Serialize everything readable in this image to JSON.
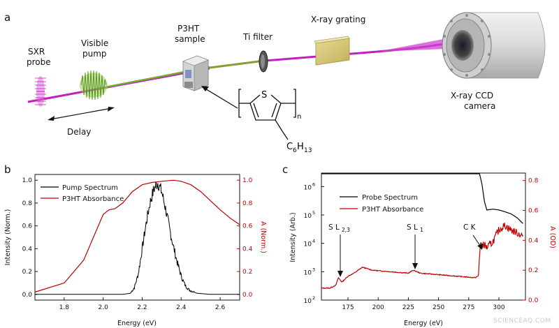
{
  "panel_a": {
    "panel_label": "a",
    "labels": {
      "sxr": [
        "SXR",
        "probe"
      ],
      "pump": [
        "Visible",
        "pump"
      ],
      "sample": [
        "P3HT",
        "sample"
      ],
      "filter": "Ti filter",
      "grating": "X-ray grating",
      "camera": [
        "X-ray CCD",
        "camera"
      ],
      "delay": "Delay"
    },
    "molecule": {
      "atom": "S",
      "subscript_n": "n",
      "side_chain": "C",
      "side_chain_sub1": "6",
      "side_chain_mid": "H",
      "side_chain_sub2": "13"
    },
    "colors": {
      "sxr": "#c020c0",
      "pump": "#6fae2a",
      "beam_mixed": "#9a8a30",
      "grating": "#d6c87a"
    }
  },
  "panel_b": {
    "panel_label": "b",
    "xlabel": "Energy (eV)",
    "ylabel_left": "Intensity (Norm.)",
    "ylabel_right": "A (Norm.)",
    "xticks": [
      "1.8",
      "2.0",
      "2.2",
      "2.4",
      "2.6"
    ],
    "yticks_left": [
      "0.0",
      "0.2",
      "0.4",
      "0.6",
      "0.8",
      "1.0"
    ],
    "yticks_right": [
      "0.0",
      "0.2",
      "0.4",
      "0.6",
      "0.8",
      "1.0"
    ],
    "legend": [
      "Pump Spectrum",
      "P3HT Absorbance"
    ]
  },
  "panel_c": {
    "panel_label": "c",
    "xlabel": "Energy (eV)",
    "ylabel_left": "Intensity (Arb.)",
    "ylabel_right": "A (OD)",
    "xticks": [
      "200",
      "250",
      "300"
    ],
    "xticks_mid": [
      "175",
      "225",
      "275"
    ],
    "yticks_left": [
      "10",
      "10",
      "10",
      "10",
      "10"
    ],
    "yticks_left_exp": [
      "2",
      "3",
      "4",
      "5",
      "6"
    ],
    "yticks_right": [
      "0.0",
      "0.2",
      "0.4",
      "0.6",
      "0.8"
    ],
    "legend": [
      "Probe Spectrum",
      "P3HT Absorbance"
    ],
    "annotations": {
      "s_l23": "S L",
      "s_l23_sub": "2,3",
      "s_l1": "S L",
      "s_l1_sub": "1",
      "ck": "C K"
    }
  },
  "watermark": "SCIENCEAQ.COM",
  "chart_data": [
    {
      "type": "line",
      "xlabel": "Energy (eV)",
      "ylabel": "Intensity (Norm.)",
      "y2label": "A (Norm.)",
      "xlim": [
        1.65,
        2.7
      ],
      "ylim": [
        -0.05,
        1.05
      ],
      "y2lim": [
        -0.05,
        1.05
      ],
      "legend_position": "top-left",
      "series": [
        {
          "name": "Pump Spectrum",
          "color": "#000000",
          "axis": "left",
          "x": [
            1.65,
            2.0,
            2.1,
            2.14,
            2.16,
            2.18,
            2.2,
            2.22,
            2.24,
            2.26,
            2.28,
            2.3,
            2.32,
            2.34,
            2.36,
            2.38,
            2.4,
            2.42,
            2.44,
            2.48,
            2.55,
            2.7
          ],
          "y": [
            0.0,
            0.0,
            0.0,
            0.01,
            0.06,
            0.18,
            0.4,
            0.62,
            0.8,
            0.92,
            0.98,
            0.9,
            0.75,
            0.58,
            0.42,
            0.28,
            0.16,
            0.08,
            0.04,
            0.01,
            0.0,
            0.0
          ]
        },
        {
          "name": "P3HT Absorbance",
          "color": "#c00000",
          "axis": "right",
          "x": [
            1.65,
            1.8,
            1.9,
            1.95,
            2.0,
            2.03,
            2.06,
            2.1,
            2.15,
            2.2,
            2.25,
            2.3,
            2.36,
            2.4,
            2.45,
            2.5,
            2.55,
            2.6,
            2.65,
            2.7
          ],
          "y": [
            0.02,
            0.1,
            0.3,
            0.5,
            0.7,
            0.74,
            0.75,
            0.8,
            0.9,
            0.96,
            0.98,
            0.99,
            1.0,
            0.99,
            0.96,
            0.9,
            0.82,
            0.74,
            0.67,
            0.61
          ]
        }
      ]
    },
    {
      "type": "line",
      "xlabel": "Energy (eV)",
      "ylabel": "Intensity (Arb.)",
      "y2label": "A (OD)",
      "xlim": [
        153,
        322
      ],
      "ylim": [
        100,
        3000000
      ],
      "y_scale": "log",
      "y2lim": [
        0.0,
        0.85
      ],
      "legend_position": "top-left",
      "series": [
        {
          "name": "Probe Spectrum",
          "color": "#000000",
          "axis": "left",
          "x": [
            153,
            160,
            170,
            180,
            200,
            220,
            240,
            260,
            270,
            278,
            282,
            284,
            286,
            288,
            290,
            295,
            300,
            305,
            310,
            315,
            320
          ],
          "y": [
            3500000,
            3500000,
            3800000,
            4200000,
            4600000,
            4800000,
            4800000,
            4700000,
            4500000,
            4200000,
            3800000,
            3000000,
            1200000,
            300000,
            150000,
            160000,
            150000,
            130000,
            110000,
            80000,
            50000
          ]
        },
        {
          "name": "P3HT Absorbance",
          "color": "#c00000",
          "axis": "right",
          "x": [
            153,
            160,
            165,
            167,
            170,
            175,
            180,
            187,
            195,
            210,
            225,
            229,
            235,
            250,
            265,
            280,
            283,
            284,
            285,
            286,
            287,
            290,
            295,
            300,
            305,
            310,
            315,
            320
          ],
          "y": [
            0.08,
            0.08,
            0.1,
            0.15,
            0.12,
            0.16,
            0.18,
            0.22,
            0.2,
            0.19,
            0.18,
            0.2,
            0.18,
            0.17,
            0.16,
            0.15,
            0.16,
            0.3,
            0.4,
            0.33,
            0.38,
            0.35,
            0.39,
            0.47,
            0.5,
            0.47,
            0.45,
            0.43
          ]
        }
      ]
    }
  ]
}
